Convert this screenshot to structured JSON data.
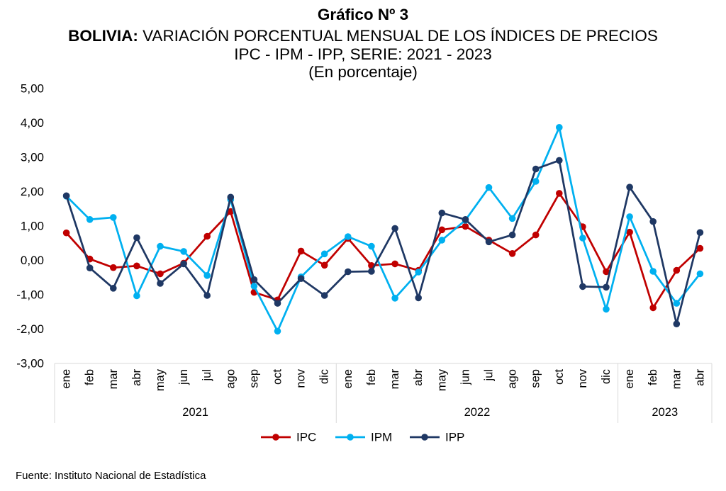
{
  "chart_data": {
    "type": "line",
    "title": "Gráfico Nº 3",
    "subtitle": {
      "lead": "BOLIVIA:",
      "text": "VARIACIÓN PORCENTUAL MENSUAL DE LOS ÍNDICES DE PRECIOS",
      "series_line": "IPC - IPM - IPP, SERIE: 2021 - 2023",
      "unit": "(En porcentaje)"
    },
    "category_groups": [
      {
        "label": "2021",
        "categories": [
          "ene",
          "feb",
          "mar",
          "abr",
          "may",
          "jun",
          "jul",
          "ago",
          "sep",
          "oct",
          "nov",
          "dic"
        ]
      },
      {
        "label": "2022",
        "categories": [
          "ene",
          "feb",
          "mar",
          "abr",
          "may",
          "jun",
          "jul",
          "ago",
          "sep",
          "oct",
          "nov",
          "dic"
        ]
      },
      {
        "label": "2023",
        "categories": [
          "ene",
          "feb",
          "mar",
          "abr"
        ]
      }
    ],
    "ylim": [
      -3,
      5
    ],
    "yticks": [
      5,
      4,
      3,
      2,
      1,
      0,
      -1,
      -2,
      -3
    ],
    "ytick_labels": [
      "5,00",
      "4,00",
      "3,00",
      "2,00",
      "1,00",
      "0,00",
      "-1,00",
      "-2,00",
      "-3,00"
    ],
    "grid": false,
    "legend_position": "bottom",
    "series": [
      {
        "name": "IPC",
        "color": "#C00000",
        "values": [
          0.8,
          0.04,
          -0.21,
          -0.16,
          -0.39,
          -0.08,
          0.7,
          1.42,
          -0.93,
          -1.15,
          0.27,
          -0.14,
          0.64,
          -0.15,
          -0.1,
          -0.29,
          0.89,
          0.99,
          0.59,
          0.2,
          0.74,
          1.95,
          0.98,
          -0.33,
          0.82,
          -1.38,
          -0.29,
          0.35
        ]
      },
      {
        "name": "IPM",
        "color": "#00B0F0",
        "values": [
          1.87,
          1.19,
          1.25,
          -1.03,
          0.41,
          0.26,
          -0.44,
          1.77,
          -0.75,
          -2.06,
          -0.48,
          0.19,
          0.69,
          0.41,
          -1.1,
          -0.34,
          0.59,
          1.17,
          2.12,
          1.22,
          2.3,
          3.87,
          0.65,
          -1.42,
          1.27,
          -0.32,
          -1.25,
          -0.39
        ]
      },
      {
        "name": "IPP",
        "color": "#1F3864",
        "values": [
          1.88,
          -0.22,
          -0.81,
          0.66,
          -0.67,
          -0.1,
          -1.02,
          1.84,
          -0.56,
          -1.25,
          -0.53,
          -1.02,
          -0.33,
          -0.32,
          0.93,
          -1.09,
          1.38,
          1.19,
          0.54,
          0.74,
          2.66,
          2.91,
          -0.76,
          -0.78,
          2.13,
          1.13,
          -1.85,
          0.81
        ]
      }
    ]
  },
  "source": "Fuente: Instituto Nacional de Estadística"
}
